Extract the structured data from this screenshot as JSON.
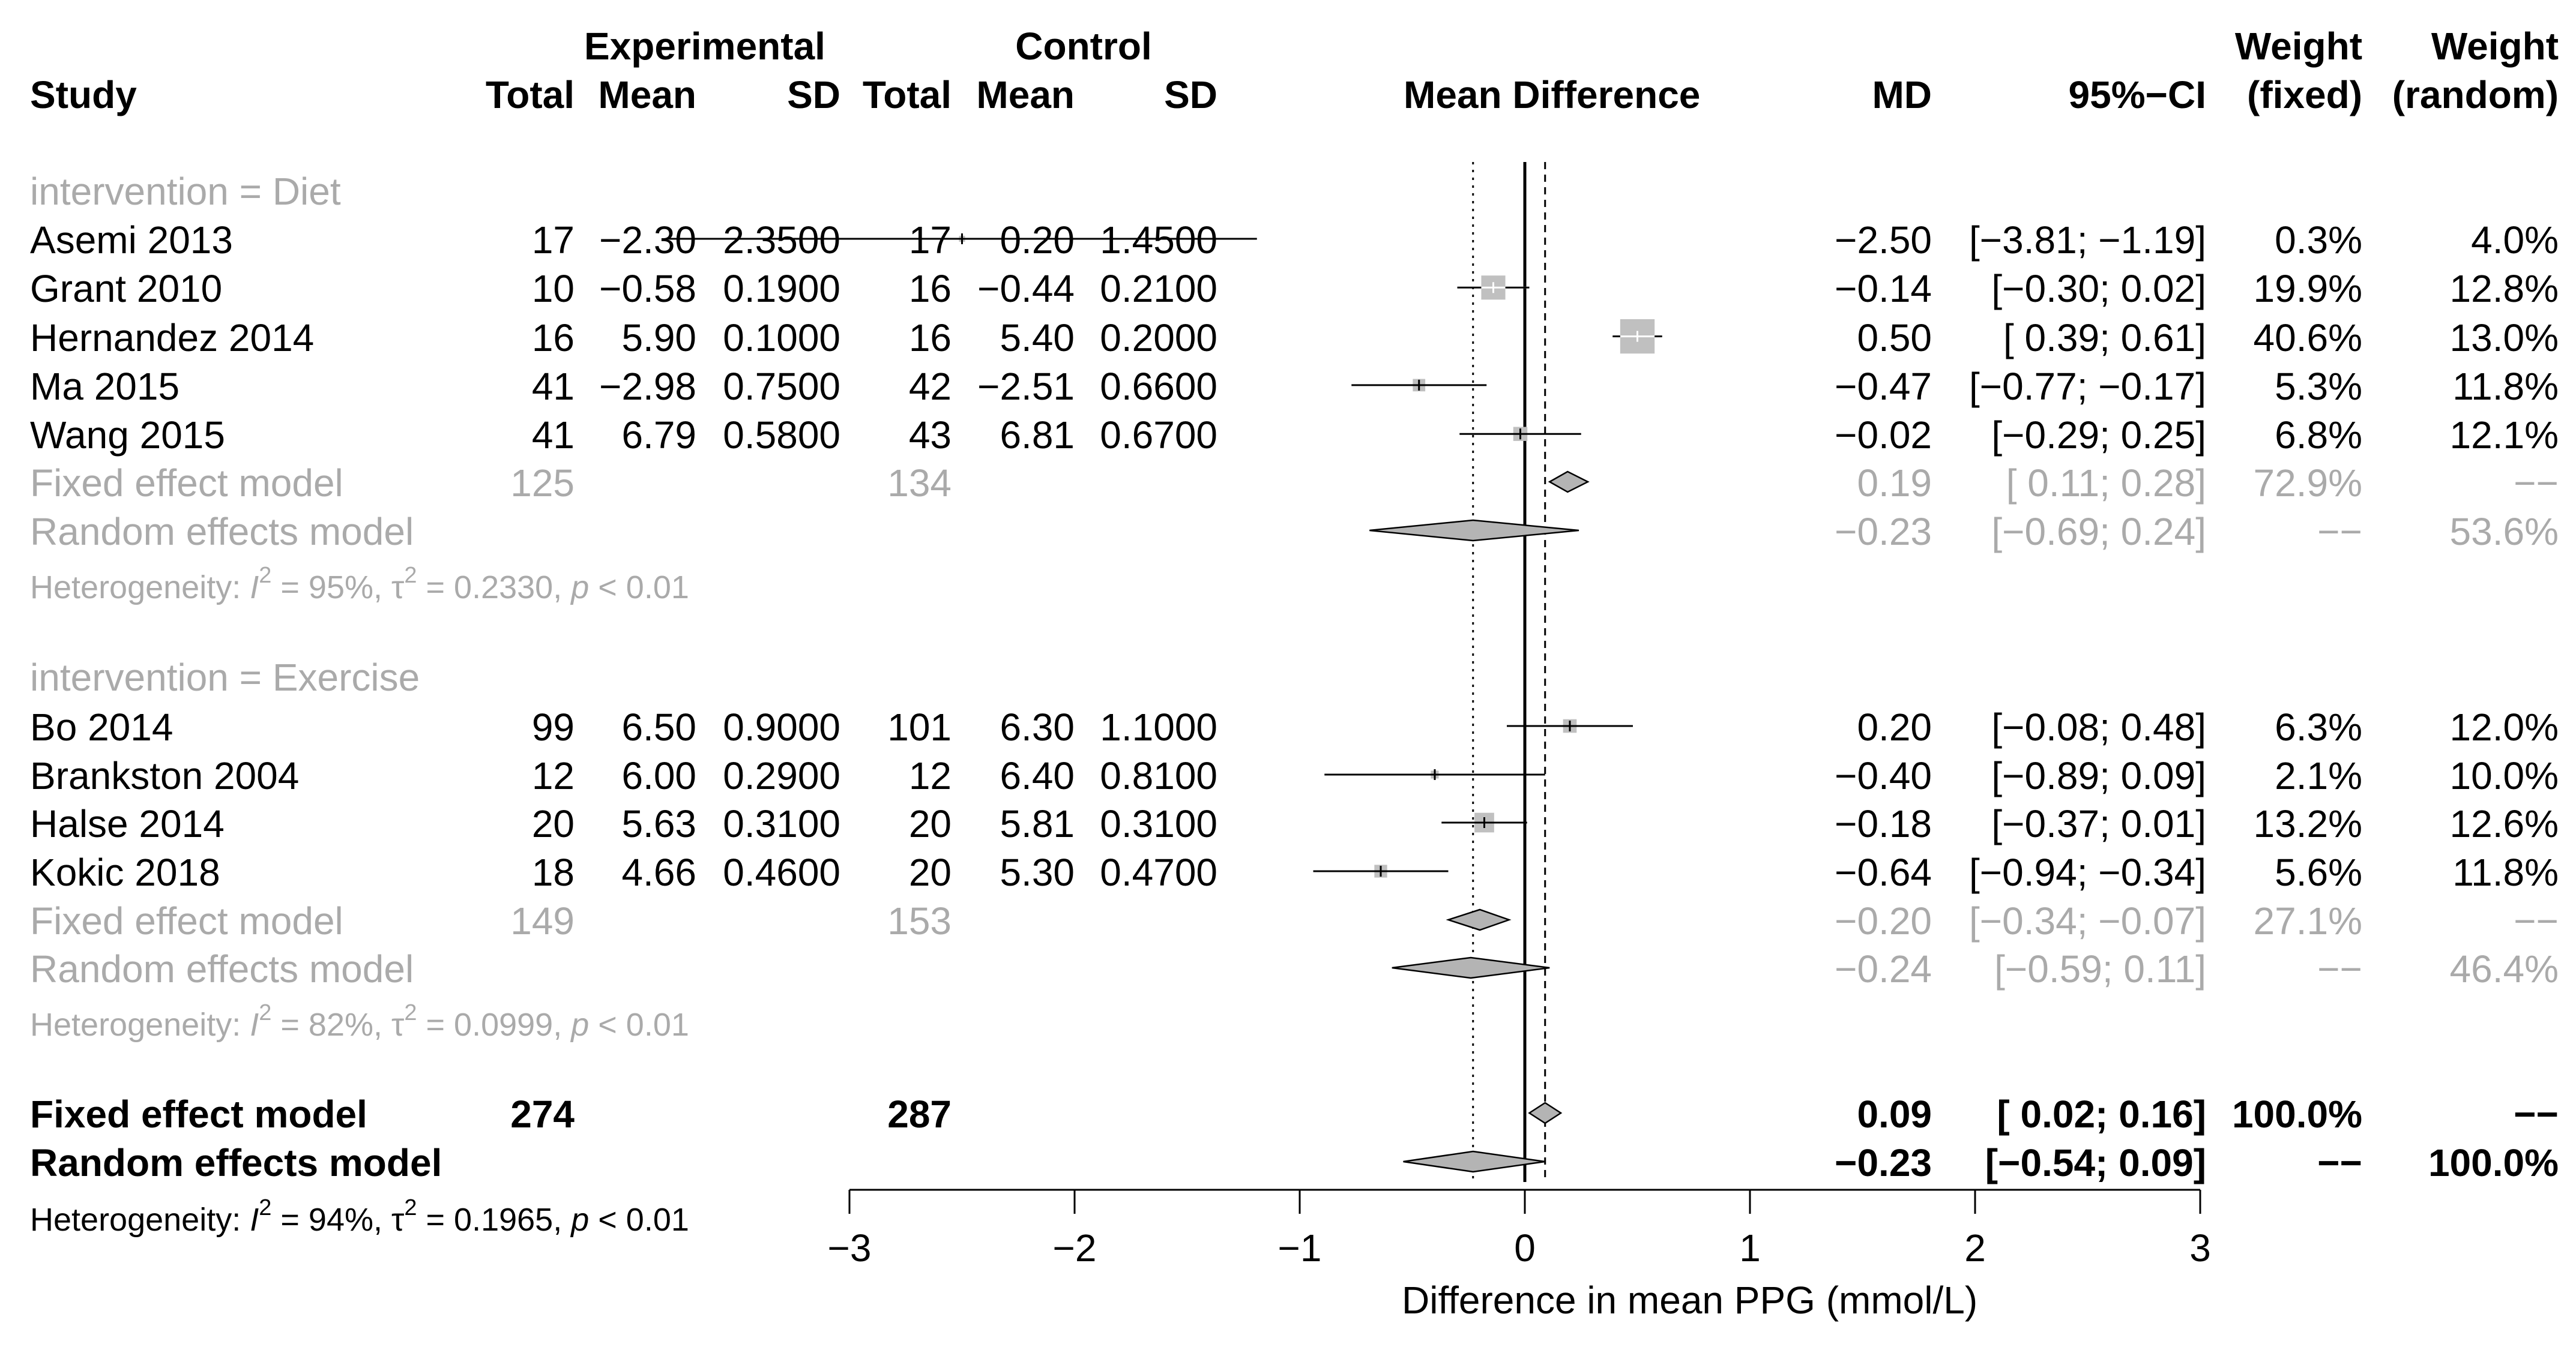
{
  "chart_data": {
    "type": "forest",
    "headers": {
      "experimental": "Experimental",
      "control": "Control",
      "study": "Study",
      "total": "Total",
      "mean": "Mean",
      "sd": "SD",
      "plot": "Mean Difference",
      "md": "MD",
      "ci": "95%−CI",
      "weight": "Weight",
      "fixed": "(fixed)",
      "random": "(random)"
    },
    "xlabel": "Difference in mean PPG (mmol/L)",
    "xlim": [
      -3,
      3
    ],
    "xticks": [
      "−3",
      "−2",
      "−1",
      "0",
      "1",
      "2",
      "3"
    ],
    "groups": [
      {
        "label": "intervention = Diet",
        "studies": [
          {
            "name": "Asemi 2013",
            "e_total": "17",
            "e_mean": "−2.30",
            "e_sd": "2.3500",
            "c_total": "17",
            "c_mean": "0.20",
            "c_sd": "1.4500",
            "md_text": "−2.50",
            "ci_text": "[−3.81; −1.19]",
            "w_fixed": "0.3%",
            "w_random": "4.0%",
            "md": -2.5,
            "lo": -3.81,
            "hi": -1.19,
            "wf": 0.3
          },
          {
            "name": "Grant 2010",
            "e_total": "10",
            "e_mean": "−0.58",
            "e_sd": "0.1900",
            "c_total": "16",
            "c_mean": "−0.44",
            "c_sd": "0.2100",
            "md_text": "−0.14",
            "ci_text": "[−0.30; 0.02]",
            "w_fixed": "19.9%",
            "w_random": "12.8%",
            "md": -0.14,
            "lo": -0.3,
            "hi": 0.02,
            "wf": 19.9
          },
          {
            "name": "Hernandez 2014",
            "e_total": "16",
            "e_mean": "5.90",
            "e_sd": "0.1000",
            "c_total": "16",
            "c_mean": "5.40",
            "c_sd": "0.2000",
            "md_text": "0.50",
            "ci_text": "[ 0.39; 0.61]",
            "w_fixed": "40.6%",
            "w_random": "13.0%",
            "md": 0.5,
            "lo": 0.39,
            "hi": 0.61,
            "wf": 40.6
          },
          {
            "name": "Ma 2015",
            "e_total": "41",
            "e_mean": "−2.98",
            "e_sd": "0.7500",
            "c_total": "42",
            "c_mean": "−2.51",
            "c_sd": "0.6600",
            "md_text": "−0.47",
            "ci_text": "[−0.77; −0.17]",
            "w_fixed": "5.3%",
            "w_random": "11.8%",
            "md": -0.47,
            "lo": -0.77,
            "hi": -0.17,
            "wf": 5.3
          },
          {
            "name": "Wang 2015",
            "e_total": "41",
            "e_mean": "6.79",
            "e_sd": "0.5800",
            "c_total": "43",
            "c_mean": "6.81",
            "c_sd": "0.6700",
            "md_text": "−0.02",
            "ci_text": "[−0.29; 0.25]",
            "w_fixed": "6.8%",
            "w_random": "12.1%",
            "md": -0.02,
            "lo": -0.29,
            "hi": 0.25,
            "wf": 6.8
          }
        ],
        "fixed": {
          "label": "Fixed effect model",
          "e_total": "125",
          "c_total": "134",
          "md_text": "0.19",
          "ci_text": "[ 0.11; 0.28]",
          "w_fixed": "72.9%",
          "w_random": "−−",
          "md": 0.19,
          "lo": 0.11,
          "hi": 0.28
        },
        "random": {
          "label": "Random effects model",
          "md_text": "−0.23",
          "ci_text": "[−0.69; 0.24]",
          "w_fixed": "−−",
          "w_random": "53.6%",
          "md": -0.23,
          "lo": -0.69,
          "hi": 0.24
        },
        "het": {
          "prefix": "Heterogeneity: ",
          "i_sym": "I",
          "i2": "2",
          "i2_val": " = 95%, ",
          "tau_sym": "τ",
          "tau2": "2",
          "tau_val": " = 0.2330, ",
          "p_sym": "p",
          "p_val": " < 0.01"
        }
      },
      {
        "label": "intervention = Exercise",
        "studies": [
          {
            "name": "Bo 2014",
            "e_total": "99",
            "e_mean": "6.50",
            "e_sd": "0.9000",
            "c_total": "101",
            "c_mean": "6.30",
            "c_sd": "1.1000",
            "md_text": "0.20",
            "ci_text": "[−0.08; 0.48]",
            "w_fixed": "6.3%",
            "w_random": "12.0%",
            "md": 0.2,
            "lo": -0.08,
            "hi": 0.48,
            "wf": 6.3
          },
          {
            "name": "Brankston 2004",
            "e_total": "12",
            "e_mean": "6.00",
            "e_sd": "0.2900",
            "c_total": "12",
            "c_mean": "6.40",
            "c_sd": "0.8100",
            "md_text": "−0.40",
            "ci_text": "[−0.89; 0.09]",
            "w_fixed": "2.1%",
            "w_random": "10.0%",
            "md": -0.4,
            "lo": -0.89,
            "hi": 0.09,
            "wf": 2.1
          },
          {
            "name": "Halse 2014",
            "e_total": "20",
            "e_mean": "5.63",
            "e_sd": "0.3100",
            "c_total": "20",
            "c_mean": "5.81",
            "c_sd": "0.3100",
            "md_text": "−0.18",
            "ci_text": "[−0.37; 0.01]",
            "w_fixed": "13.2%",
            "w_random": "12.6%",
            "md": -0.18,
            "lo": -0.37,
            "hi": 0.01,
            "wf": 13.2
          },
          {
            "name": "Kokic 2018",
            "e_total": "18",
            "e_mean": "4.66",
            "e_sd": "0.4600",
            "c_total": "20",
            "c_mean": "5.30",
            "c_sd": "0.4700",
            "md_text": "−0.64",
            "ci_text": "[−0.94; −0.34]",
            "w_fixed": "5.6%",
            "w_random": "11.8%",
            "md": -0.64,
            "lo": -0.94,
            "hi": -0.34,
            "wf": 5.6
          }
        ],
        "fixed": {
          "label": "Fixed effect model",
          "e_total": "149",
          "c_total": "153",
          "md_text": "−0.20",
          "ci_text": "[−0.34; −0.07]",
          "w_fixed": "27.1%",
          "w_random": "−−",
          "md": -0.2,
          "lo": -0.34,
          "hi": -0.07
        },
        "random": {
          "label": "Random effects model",
          "md_text": "−0.24",
          "ci_text": "[−0.59; 0.11]",
          "w_fixed": "−−",
          "w_random": "46.4%",
          "md": -0.24,
          "lo": -0.59,
          "hi": 0.11
        },
        "het": {
          "prefix": "Heterogeneity: ",
          "i_sym": "I",
          "i2": "2",
          "i2_val": " = 82%, ",
          "tau_sym": "τ",
          "tau2": "2",
          "tau_val": " = 0.0999, ",
          "p_sym": "p",
          "p_val": " < 0.01"
        }
      }
    ],
    "overall": {
      "fixed": {
        "label": "Fixed effect model",
        "e_total": "274",
        "c_total": "287",
        "md_text": "0.09",
        "ci_text": "[ 0.02; 0.16]",
        "w_fixed": "100.0%",
        "w_random": "−−",
        "md": 0.09,
        "lo": 0.02,
        "hi": 0.16
      },
      "random": {
        "label": "Random effects model",
        "md_text": "−0.23",
        "ci_text": "[−0.54; 0.09]",
        "w_fixed": "−−",
        "w_random": "100.0%",
        "md": -0.23,
        "lo": -0.54,
        "hi": 0.09
      },
      "het": {
        "prefix": "Heterogeneity: ",
        "i_sym": "I",
        "i2": "2",
        "i2_val": " = 94%, ",
        "tau_sym": "τ",
        "tau2": "2",
        "tau_val": " = 0.1965, ",
        "p_sym": "p",
        "p_val": " < 0.01"
      }
    },
    "reference_lines": {
      "null_value": 0,
      "fixed_overall": 0.09,
      "random_overall": -0.23
    },
    "colors": {
      "text": "#000000",
      "subgroup": "#aaaaaa",
      "square": "#c0c0c0",
      "diamond": "#b4b4b4"
    }
  }
}
